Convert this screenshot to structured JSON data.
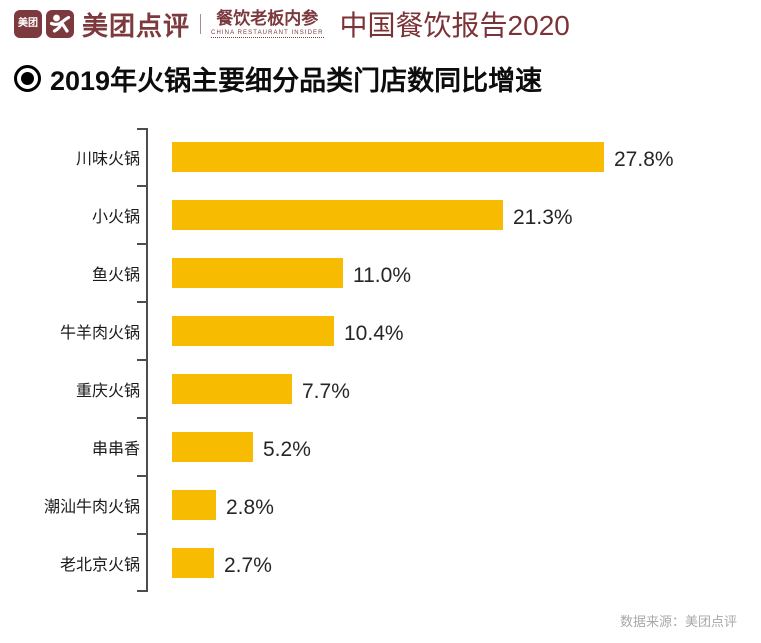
{
  "header": {
    "meituan_logo_text": "美团",
    "brand": "美团点评",
    "insider_title": "餐饮老板内参",
    "insider_subtitle": "CHINA RESTAURANT INSIDER",
    "report_title": "中国餐饮报告2020"
  },
  "title": "2019年火锅主要细分品类门店数同比增速",
  "source": "数据来源：美团点评",
  "colors": {
    "bar": "#F7BC02",
    "brand_maroon": "#7C3A3F",
    "axis": "#4D4D4D",
    "source_text": "#A8A8A8"
  },
  "chart_data": {
    "type": "bar",
    "orientation": "horizontal",
    "title": "2019年火锅主要细分品类门店数同比增速",
    "categories": [
      "川味火锅",
      "小火锅",
      "鱼火锅",
      "牛羊肉火锅",
      "重庆火锅",
      "串串香",
      "潮汕牛肉火锅",
      "老北京火锅"
    ],
    "values": [
      27.8,
      21.3,
      11.0,
      10.4,
      7.7,
      5.2,
      2.8,
      2.7
    ],
    "labels": [
      "27.8%",
      "21.3%",
      "11.0%",
      "10.4%",
      "7.7%",
      "5.2%",
      "2.8%",
      "2.7%"
    ],
    "unit": "%",
    "xlim": [
      0,
      30
    ],
    "grid": false,
    "legend": false,
    "bar_color": "#F7BC02"
  }
}
